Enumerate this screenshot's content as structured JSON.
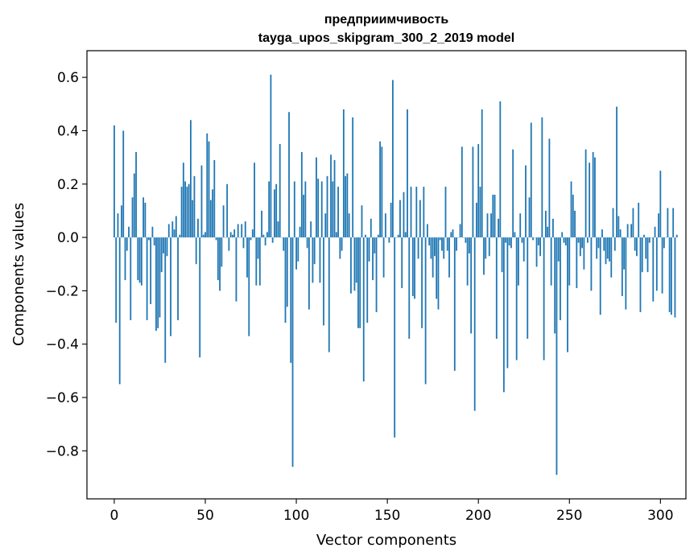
{
  "chart_data": {
    "type": "bar",
    "title": "предприимчивость",
    "subtitle": "tayga_upos_skipgram_300_2_2019 model",
    "xlabel": "Vector components",
    "ylabel": "Components values",
    "xlim": [
      -15,
      314
    ],
    "ylim": [
      -0.98,
      0.7
    ],
    "xticks": [
      0,
      50,
      100,
      150,
      200,
      250,
      300
    ],
    "yticks": [
      -0.8,
      -0.6,
      -0.4,
      -0.2,
      0.0,
      0.2,
      0.4,
      0.6
    ],
    "ytick_labels": [
      "−0.8",
      "−0.6",
      "−0.4",
      "−0.2",
      "0.0",
      "0.2",
      "0.4",
      "0.6"
    ],
    "grid": false,
    "bar_color": "#1f77b4",
    "values": [
      0.42,
      -0.32,
      0.09,
      -0.55,
      0.12,
      0.4,
      -0.16,
      -0.05,
      0.04,
      -0.31,
      0.15,
      0.24,
      0.32,
      -0.16,
      -0.17,
      -0.18,
      0.15,
      0.13,
      -0.31,
      -0.01,
      -0.25,
      0.04,
      -0.03,
      -0.35,
      -0.34,
      -0.3,
      -0.13,
      -0.06,
      -0.47,
      -0.07,
      0.05,
      -0.37,
      0.06,
      0.03,
      0.08,
      -0.31,
      0.01,
      0.19,
      0.28,
      0.21,
      0.19,
      0.2,
      0.44,
      0.14,
      0.23,
      -0.1,
      0.07,
      -0.45,
      0.27,
      0.01,
      0.02,
      0.39,
      0.36,
      0.14,
      0.18,
      0.29,
      -0.01,
      -0.16,
      -0.2,
      -0.11,
      0.12,
      0.0,
      0.2,
      -0.05,
      0.02,
      0.01,
      0.03,
      -0.24,
      0.05,
      0.0,
      0.05,
      -0.04,
      0.06,
      -0.15,
      -0.37,
      -0.01,
      0.03,
      0.28,
      -0.18,
      -0.08,
      -0.18,
      0.1,
      0.01,
      -0.03,
      0.02,
      0.21,
      0.61,
      -0.02,
      0.18,
      0.2,
      0.06,
      0.35,
      0.0,
      -0.05,
      -0.32,
      -0.26,
      0.47,
      -0.47,
      -0.86,
      0.21,
      -0.12,
      -0.09,
      0.04,
      0.32,
      0.16,
      0.21,
      -0.04,
      -0.27,
      0.06,
      -0.17,
      -0.1,
      0.3,
      0.22,
      -0.17,
      0.21,
      -0.33,
      0.09,
      0.23,
      -0.43,
      0.31,
      0.21,
      0.29,
      0.02,
      0.19,
      -0.08,
      -0.05,
      0.48,
      0.23,
      0.24,
      0.09,
      -0.21,
      0.45,
      -0.2,
      -0.17,
      -0.34,
      -0.34,
      0.12,
      -0.54,
      0.01,
      -0.32,
      -0.09,
      0.07,
      -0.16,
      -0.06,
      -0.28,
      0.01,
      0.36,
      0.34,
      -0.15,
      0.09,
      0.0,
      -0.02,
      0.13,
      0.59,
      -0.75,
      0.0,
      0.01,
      0.14,
      -0.19,
      0.17,
      0.02,
      0.48,
      -0.38,
      0.19,
      -0.22,
      -0.23,
      0.19,
      -0.08,
      0.14,
      -0.34,
      0.19,
      -0.55,
      0.05,
      -0.03,
      -0.08,
      -0.15,
      -0.07,
      -0.23,
      -0.27,
      -0.01,
      -0.05,
      -0.08,
      0.19,
      -0.05,
      -0.15,
      0.02,
      0.03,
      -0.5,
      -0.05,
      0.0,
      0.05,
      0.34,
      0.0,
      -0.02,
      -0.18,
      -0.06,
      -0.36,
      0.34,
      -0.65,
      0.13,
      0.35,
      0.19,
      0.48,
      -0.14,
      -0.08,
      0.09,
      -0.07,
      0.09,
      0.16,
      0.16,
      -0.38,
      0.07,
      0.51,
      -0.13,
      -0.58,
      -0.02,
      -0.49,
      -0.03,
      -0.04,
      0.33,
      0.02,
      -0.46,
      -0.18,
      0.09,
      -0.02,
      -0.09,
      0.27,
      -0.38,
      0.15,
      0.43,
      -0.01,
      0.0,
      -0.11,
      -0.03,
      -0.07,
      0.45,
      -0.46,
      0.1,
      0.04,
      0.37,
      -0.18,
      0.07,
      -0.36,
      -0.89,
      -0.09,
      -0.31,
      0.02,
      -0.02,
      -0.03,
      -0.43,
      -0.18,
      0.21,
      0.16,
      0.1,
      -0.19,
      -0.02,
      -0.07,
      -0.04,
      -0.12,
      0.33,
      -0.02,
      0.28,
      -0.2,
      0.32,
      0.3,
      -0.08,
      -0.04,
      -0.29,
      0.03,
      -0.05,
      -0.1,
      -0.08,
      -0.09,
      -0.15,
      0.11,
      -0.05,
      0.49,
      0.08,
      0.03,
      -0.22,
      -0.12,
      -0.27,
      0.05,
      0.0,
      0.05,
      0.11,
      -0.05,
      -0.07,
      0.13,
      -0.28,
      -0.13,
      0.01,
      -0.08,
      -0.13,
      -0.02,
      0.0,
      -0.24,
      0.04,
      -0.2,
      0.09,
      0.25,
      -0.21,
      -0.04,
      0.0,
      0.11,
      -0.28,
      -0.29,
      0.11,
      -0.3,
      0.01
    ]
  }
}
